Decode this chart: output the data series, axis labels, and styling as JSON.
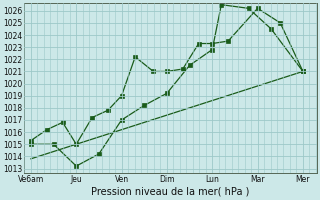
{
  "xlabel": "Pression niveau de la mer( hPa )",
  "yticks": [
    1013,
    1014,
    1015,
    1016,
    1017,
    1018,
    1019,
    1020,
    1021,
    1022,
    1023,
    1024,
    1025,
    1026
  ],
  "xtick_labels": [
    "Ve6am",
    "Jeu",
    "Ven",
    "Dim",
    "Lun",
    "Mar",
    "Mer"
  ],
  "xtick_positions": [
    0,
    1,
    2,
    3,
    4,
    5,
    6
  ],
  "background_color": "#cce8e8",
  "grid_color": "#9dc8c8",
  "line_color": "#1a5c1a",
  "line1_x": [
    0,
    0.35,
    0.7,
    1.0,
    1.35,
    1.7,
    2.0,
    2.3,
    2.7,
    3.0,
    3.35,
    3.7,
    4.0,
    4.35,
    5.0,
    5.5,
    6.0
  ],
  "line1_y": [
    1015.3,
    1016.2,
    1016.8,
    1015.0,
    1017.2,
    1017.8,
    1019.0,
    1022.2,
    1021.0,
    1021.0,
    1021.2,
    1023.3,
    1023.3,
    1023.5,
    1026.2,
    1025.0,
    1021.0
  ],
  "line2_x": [
    0,
    0.5,
    1.0,
    1.5,
    2.0,
    2.5,
    3.0,
    3.5,
    4.0,
    4.2,
    4.8,
    5.3,
    6.0
  ],
  "line2_y": [
    1015.0,
    1015.0,
    1013.2,
    1014.2,
    1017.0,
    1018.2,
    1019.2,
    1021.5,
    1022.8,
    1026.5,
    1026.2,
    1024.5,
    1021.0
  ],
  "line3_x": [
    0,
    6.0
  ],
  "line3_y": [
    1013.8,
    1021.0
  ],
  "ylim_min": 1012.6,
  "ylim_max": 1026.6,
  "xlim_min": -0.15,
  "xlim_max": 6.3,
  "marker_size": 2.8,
  "linewidth": 0.9
}
